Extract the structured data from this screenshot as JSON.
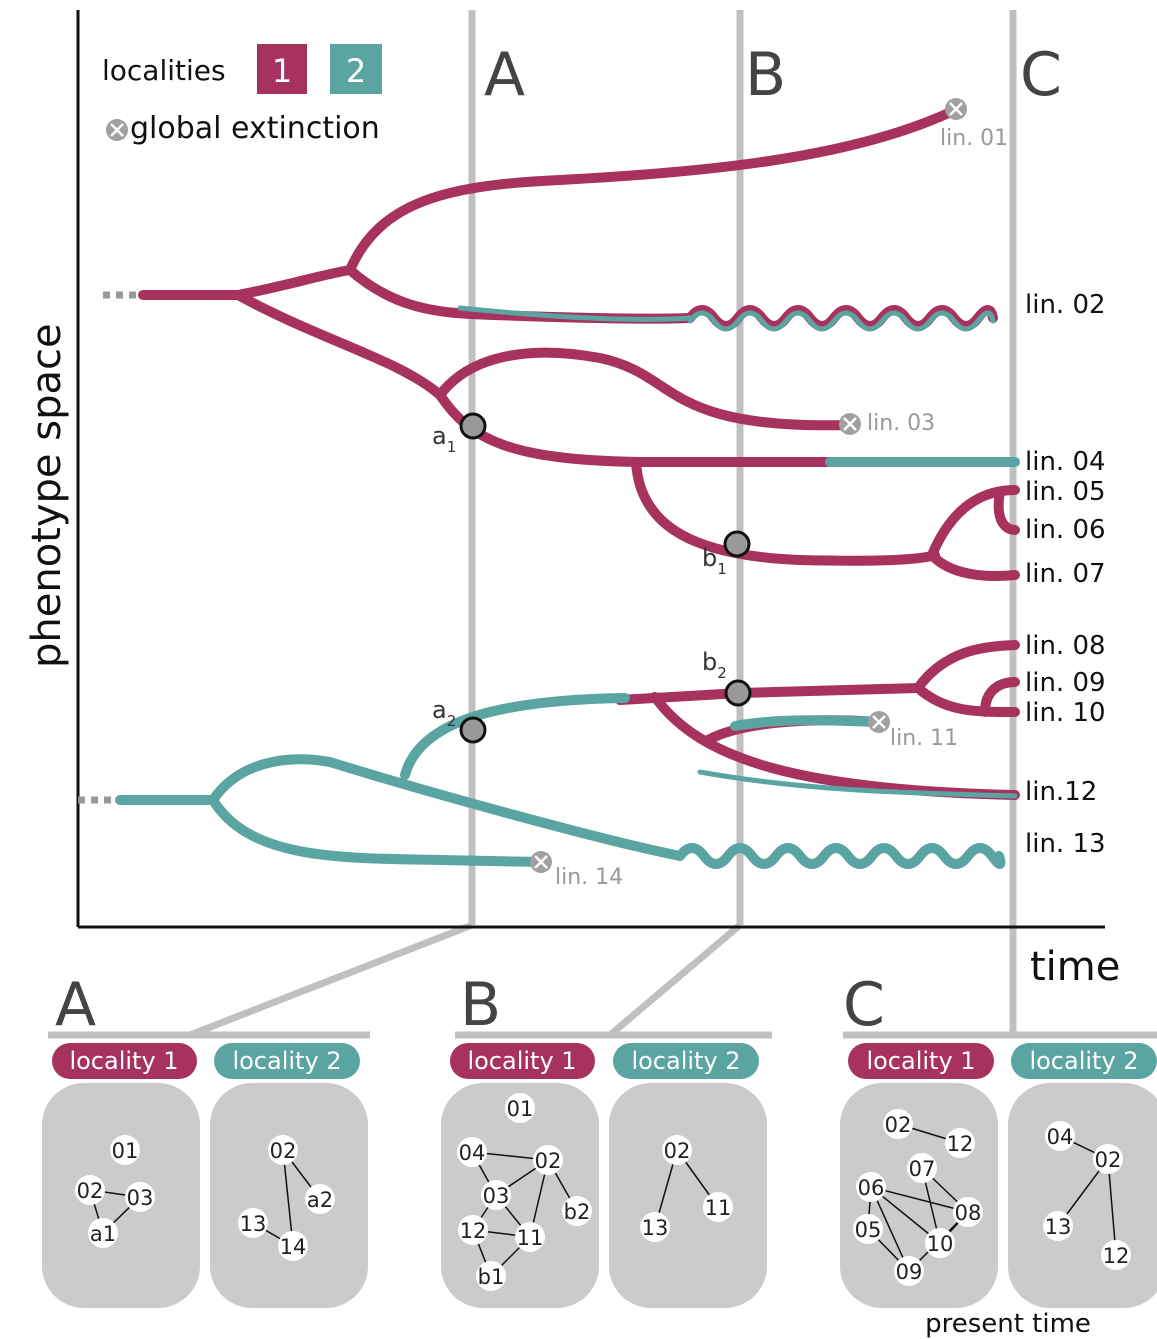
{
  "colors": {
    "locality1": "#a8325e",
    "locality2": "#5aa5a2",
    "grey": "#c0c0c0",
    "extinct": "#999999"
  },
  "legend": {
    "localities_label": "localities",
    "loc1_num": "1",
    "loc2_num": "2",
    "extinction_label": "global extinction"
  },
  "axes": {
    "ylabel": "phenotype space",
    "xlabel": "time"
  },
  "time_slices": {
    "A": "A",
    "B": "B",
    "C": "C"
  },
  "lineages": {
    "lin01": "lin. 01",
    "lin02": "lin. 02",
    "lin03": "lin. 03",
    "lin04": "lin. 04",
    "lin05": "lin. 05",
    "lin06": "lin. 06",
    "lin07": "lin. 07",
    "lin08": "lin. 08",
    "lin09": "lin. 09",
    "lin10": "lin. 10",
    "lin11": "lin. 11",
    "lin12": "lin.12",
    "lin13": "lin. 13",
    "lin14": "lin. 14"
  },
  "events": {
    "a1": "a",
    "a1_sub": "1",
    "a2": "a",
    "a2_sub": "2",
    "b1": "b",
    "b1_sub": "1",
    "b2": "b",
    "b2_sub": "2"
  },
  "panels": {
    "A": {
      "title": "A",
      "loc1_label": "locality 1",
      "loc2_label": "locality 2",
      "loc1_nodes": [
        "01",
        "02",
        "03",
        "a1"
      ],
      "loc2_nodes": [
        "02",
        "a2",
        "13",
        "14"
      ]
    },
    "B": {
      "title": "B",
      "loc1_label": "locality 1",
      "loc2_label": "locality 2",
      "loc1_nodes": [
        "01",
        "04",
        "02",
        "03",
        "b2",
        "12",
        "11",
        "b1"
      ],
      "loc2_nodes": [
        "02",
        "13",
        "11"
      ]
    },
    "C": {
      "title": "C",
      "loc1_label": "locality 1",
      "loc2_label": "locality 2",
      "loc1_nodes": [
        "02",
        "12",
        "07",
        "06",
        "08",
        "05",
        "10",
        "09"
      ],
      "loc2_nodes": [
        "04",
        "02",
        "13",
        "12"
      ]
    }
  },
  "footer": "present time"
}
